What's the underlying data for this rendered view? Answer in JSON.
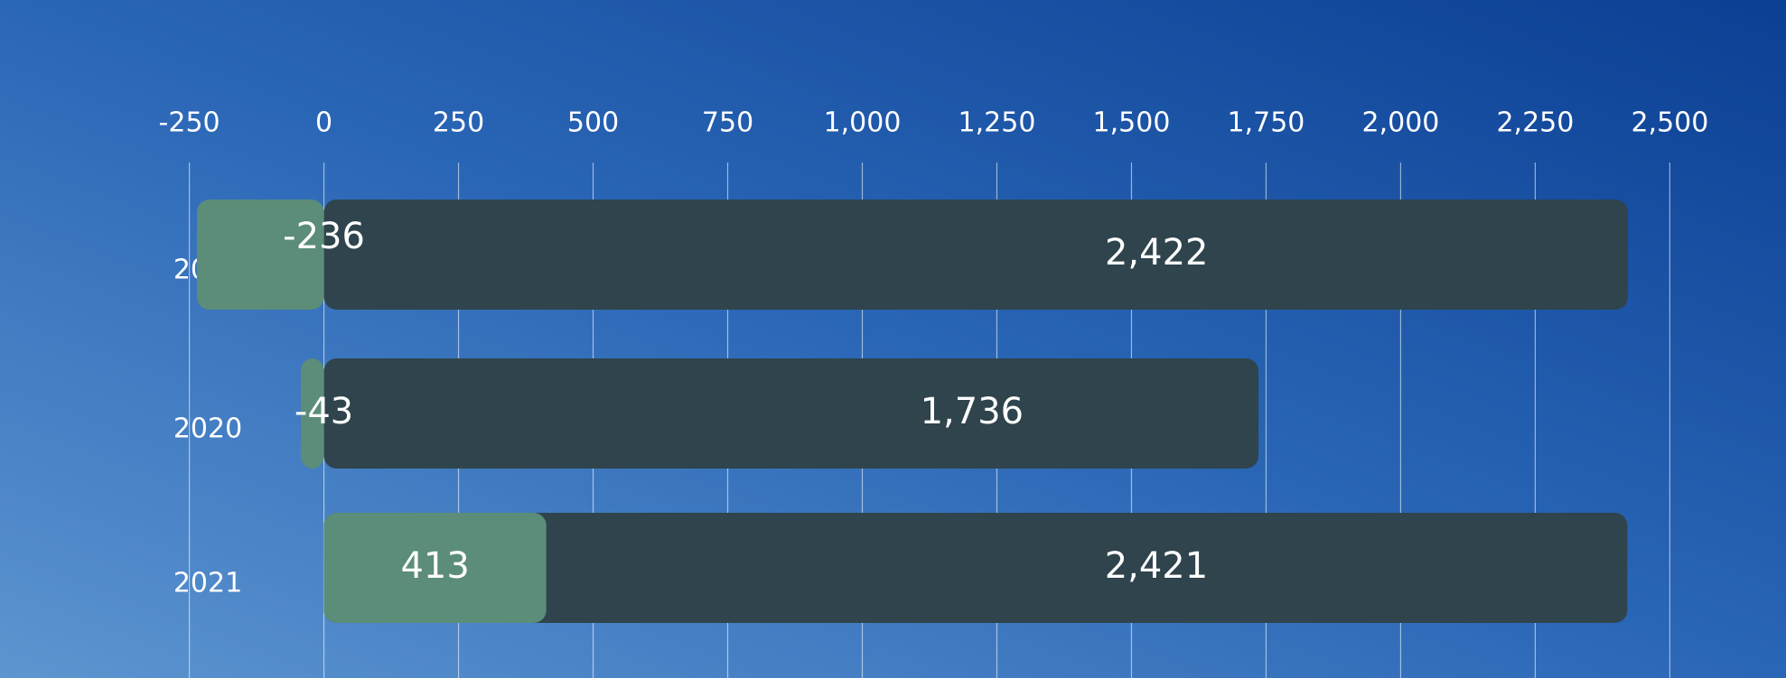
{
  "chart_data": {
    "type": "bar",
    "orientation": "horizontal",
    "categories": [
      "2019",
      "2020",
      "2021"
    ],
    "series": [
      {
        "color": "#2f444c",
        "values": [
          2422,
          1736,
          2421
        ],
        "value_labels": [
          "2,422",
          "1,736",
          "2,421"
        ]
      },
      {
        "color": "#5b8d79",
        "values": [
          -236,
          -43,
          413
        ]
      }
    ],
    "xlim": [
      -350,
      2600
    ],
    "xticks": [
      -250,
      0,
      250,
      500,
      750,
      {
        "value": 1000,
        "label": "1,000"
      },
      {
        "value": 1250,
        "label": "1,250"
      },
      {
        "value": 1500,
        "label": "1,500"
      },
      {
        "value": 1750,
        "label": "1,750"
      },
      {
        "value": 2000,
        "label": "2,000"
      },
      {
        "value": 2250,
        "label": "2,250"
      },
      {
        "value": 2500,
        "label": "2,500"
      }
    ],
    "grid": true
  }
}
